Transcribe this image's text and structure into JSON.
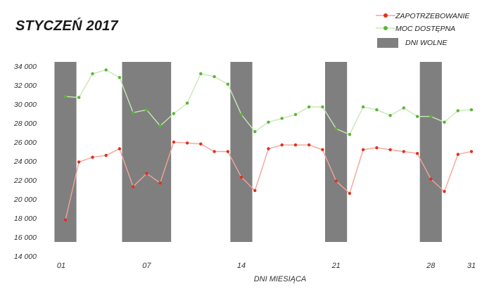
{
  "chart_data": {
    "type": "line",
    "title": "STYCZEŃ 2017",
    "xlabel": "DNI MIESIĄCA",
    "ylabel": "",
    "ylim": [
      14000,
      34000
    ],
    "yticks": [
      14000,
      16000,
      18000,
      20000,
      22000,
      24000,
      26000,
      28000,
      30000,
      32000,
      34000
    ],
    "ytick_labels": [
      "14 000",
      "16 000",
      "18 000",
      "20 000",
      "22 000",
      "24 000",
      "26 000",
      "28 000",
      "30 000",
      "32 000",
      "34 000"
    ],
    "xlim": [
      1,
      31
    ],
    "xticks": [
      1,
      7,
      14,
      21,
      28,
      31
    ],
    "xtick_labels": [
      "01",
      "07",
      "14",
      "21",
      "28",
      "31"
    ],
    "x": [
      1,
      2,
      3,
      4,
      5,
      6,
      7,
      8,
      9,
      10,
      11,
      12,
      13,
      14,
      15,
      16,
      17,
      18,
      19,
      20,
      21,
      22,
      23,
      24,
      25,
      26,
      27,
      28,
      29,
      30,
      31
    ],
    "series": [
      {
        "name": "ZAPOTRZEBOWANIE",
        "color": "#e0301e",
        "line_color": "#f2a49a",
        "values": [
          17800,
          23900,
          24400,
          24600,
          25300,
          21300,
          22700,
          21700,
          26000,
          25900,
          25800,
          25000,
          25000,
          22300,
          20900,
          25300,
          25700,
          25700,
          25700,
          25200,
          21900,
          20600,
          25200,
          25400,
          25200,
          25000,
          24800,
          22100,
          20800,
          24700,
          25000
        ]
      },
      {
        "name": "MOC DOSTĘPNA",
        "color": "#5ab534",
        "line_color": "#c8e8b4",
        "values": [
          30800,
          30700,
          33200,
          33600,
          32800,
          29100,
          29400,
          27700,
          29000,
          30100,
          33200,
          32900,
          32100,
          28900,
          27100,
          28100,
          28500,
          28900,
          29700,
          29700,
          27400,
          26800,
          29700,
          29400,
          28800,
          29600,
          28700,
          28700,
          28100,
          29300,
          29400
        ]
      }
    ],
    "free_days": {
      "name": "DNI WOLNE",
      "color": "#7f7f7f",
      "ranges": [
        [
          1,
          1
        ],
        [
          6,
          8
        ],
        [
          14,
          14
        ],
        [
          21,
          21
        ],
        [
          28,
          28
        ]
      ]
    },
    "grid": false,
    "legend_position": "top-right"
  }
}
